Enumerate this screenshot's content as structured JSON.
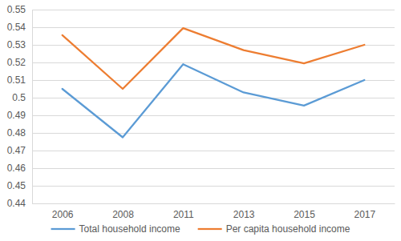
{
  "chart_data": {
    "type": "line",
    "categories": [
      "2006",
      "2008",
      "2011",
      "2013",
      "2015",
      "2017"
    ],
    "series": [
      {
        "name": "Total household income",
        "color": "#5b9bd5",
        "values": [
          0.505,
          0.4775,
          0.519,
          0.503,
          0.4955,
          0.51
        ]
      },
      {
        "name": "Per capita household income",
        "color": "#ed7d31",
        "values": [
          0.5355,
          0.505,
          0.5395,
          0.527,
          0.5195,
          0.53
        ]
      }
    ],
    "ylim": [
      0.44,
      0.55
    ],
    "yticks": [
      0.44,
      0.45,
      0.46,
      0.47,
      0.48,
      0.49,
      0.5,
      0.51,
      0.52,
      0.53,
      0.54,
      0.55
    ],
    "grid": true,
    "legend": "bottom"
  }
}
